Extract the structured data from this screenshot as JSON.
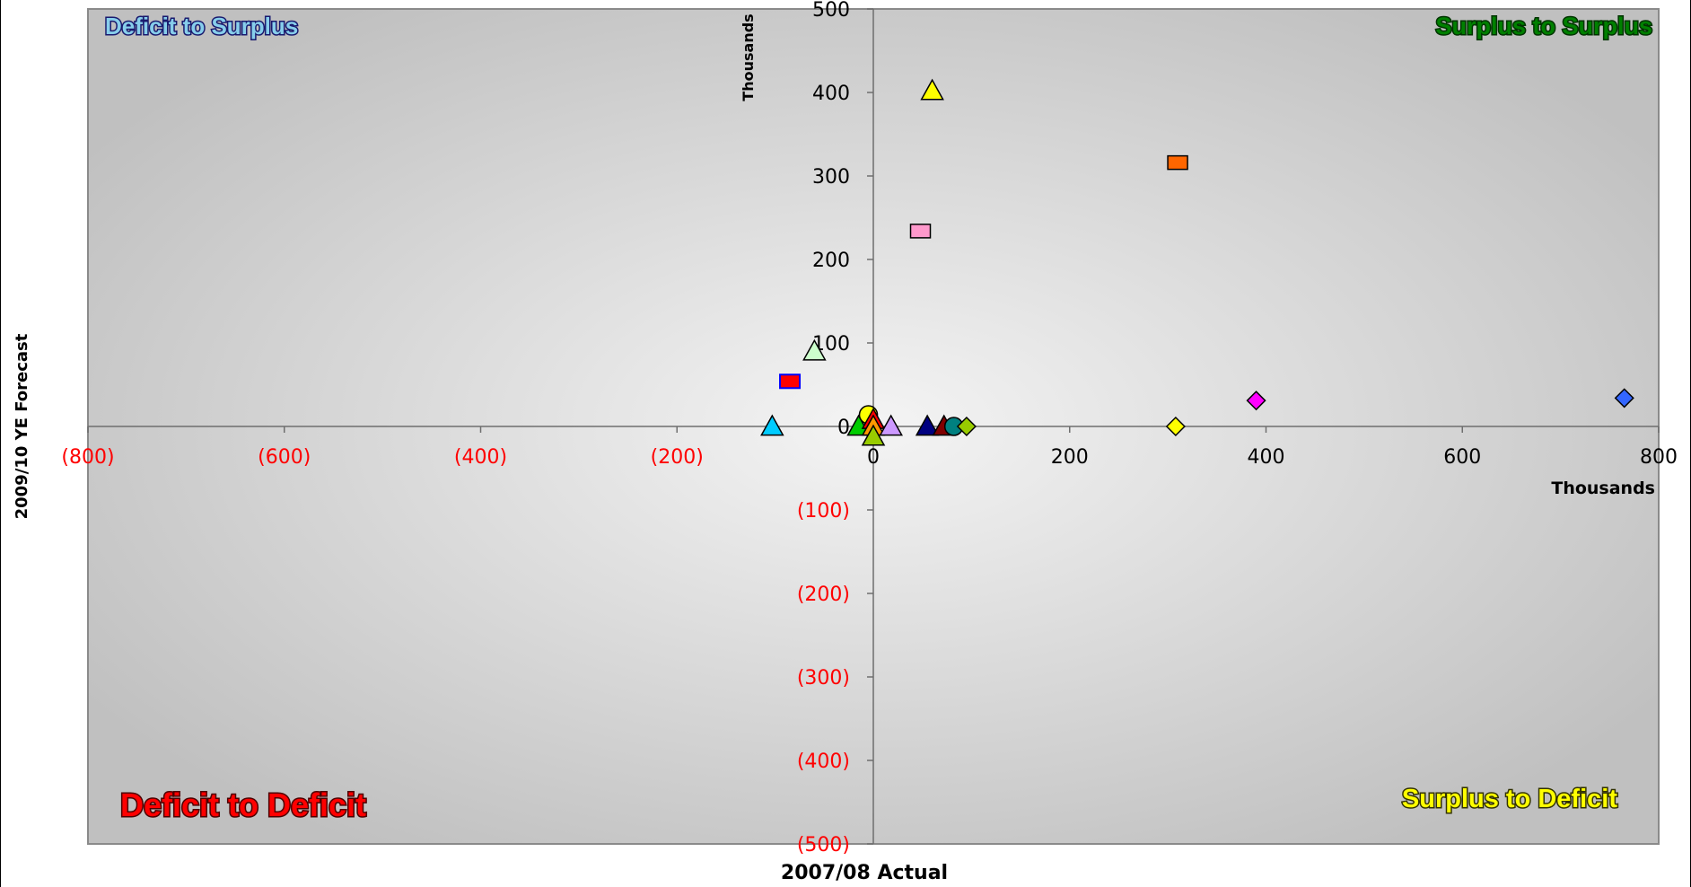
{
  "chart_data": {
    "type": "scatter",
    "x_unit": "Thousands",
    "y_unit": "Thousands",
    "xlabel": "2007/08 Actual",
    "ylabel": "2009/10 YE Forecast",
    "xlim": [
      -800,
      800
    ],
    "ylim": [
      -500,
      500
    ],
    "x_ticks": [
      -800,
      -600,
      -400,
      -200,
      0,
      200,
      400,
      600,
      800
    ],
    "x_tick_labels": [
      "(800)",
      "(600)",
      "(400)",
      "(200)",
      "0",
      "200",
      "400",
      "600",
      "800"
    ],
    "y_ticks": [
      -500,
      -400,
      -300,
      -200,
      -100,
      0,
      100,
      200,
      300,
      400,
      500
    ],
    "y_tick_labels": [
      "(500)",
      "(400)",
      "(300)",
      "(200)",
      "(100)",
      "0",
      "100",
      "200",
      "300",
      "400",
      "500"
    ],
    "negative_tick_color": "#ff0000",
    "positive_tick_color": "#000000",
    "grid": false,
    "legend": "none",
    "quadrant_labels": {
      "top_left": {
        "text": "Deficit to Surplus",
        "color": "#87ceeb"
      },
      "top_right": {
        "text": "Surplus to Surplus",
        "color": "#008000"
      },
      "bottom_left": {
        "text": "Deficit to Deficit",
        "color": "#ff0000"
      },
      "bottom_right": {
        "text": "Surplus to Deficit",
        "color": "#ffff00"
      }
    },
    "points": [
      {
        "x": 60,
        "y": 402,
        "marker": "triangle",
        "color": "#ffff00"
      },
      {
        "x": 310,
        "y": 316,
        "marker": "square",
        "color": "#ff6600"
      },
      {
        "x": 48,
        "y": 234,
        "marker": "square",
        "color": "#ff99cc"
      },
      {
        "x": -60,
        "y": 90,
        "marker": "triangle",
        "color": "#ccffcc"
      },
      {
        "x": -85,
        "y": 54,
        "marker": "square",
        "color": "#ff0000",
        "edge": "#0000ff"
      },
      {
        "x": 390,
        "y": 31,
        "marker": "diamond",
        "color": "#ff00ff"
      },
      {
        "x": 765,
        "y": 34,
        "marker": "diamond",
        "color": "#3366ff"
      },
      {
        "x": -103,
        "y": 0,
        "marker": "triangle",
        "color": "#00ccff"
      },
      {
        "x": -5,
        "y": 14,
        "marker": "circle",
        "color": "#ffff00"
      },
      {
        "x": -15,
        "y": 0,
        "marker": "triangle",
        "color": "#00cc00"
      },
      {
        "x": 0,
        "y": 8,
        "marker": "triangle",
        "color": "#ff0000"
      },
      {
        "x": 0,
        "y": 0,
        "marker": "triangle",
        "color": "#ff9900"
      },
      {
        "x": 0,
        "y": -12,
        "marker": "triangle",
        "color": "#99cc00"
      },
      {
        "x": 18,
        "y": 0,
        "marker": "triangle",
        "color": "#cc99ff"
      },
      {
        "x": 55,
        "y": 0,
        "marker": "triangle",
        "color": "#000080"
      },
      {
        "x": 72,
        "y": 0,
        "marker": "triangle",
        "color": "#800000"
      },
      {
        "x": 82,
        "y": 0,
        "marker": "circle",
        "color": "#008080"
      },
      {
        "x": 95,
        "y": 0,
        "marker": "diamond",
        "color": "#99cc00"
      },
      {
        "x": 308,
        "y": 0,
        "marker": "diamond",
        "color": "#ffff00"
      }
    ]
  }
}
